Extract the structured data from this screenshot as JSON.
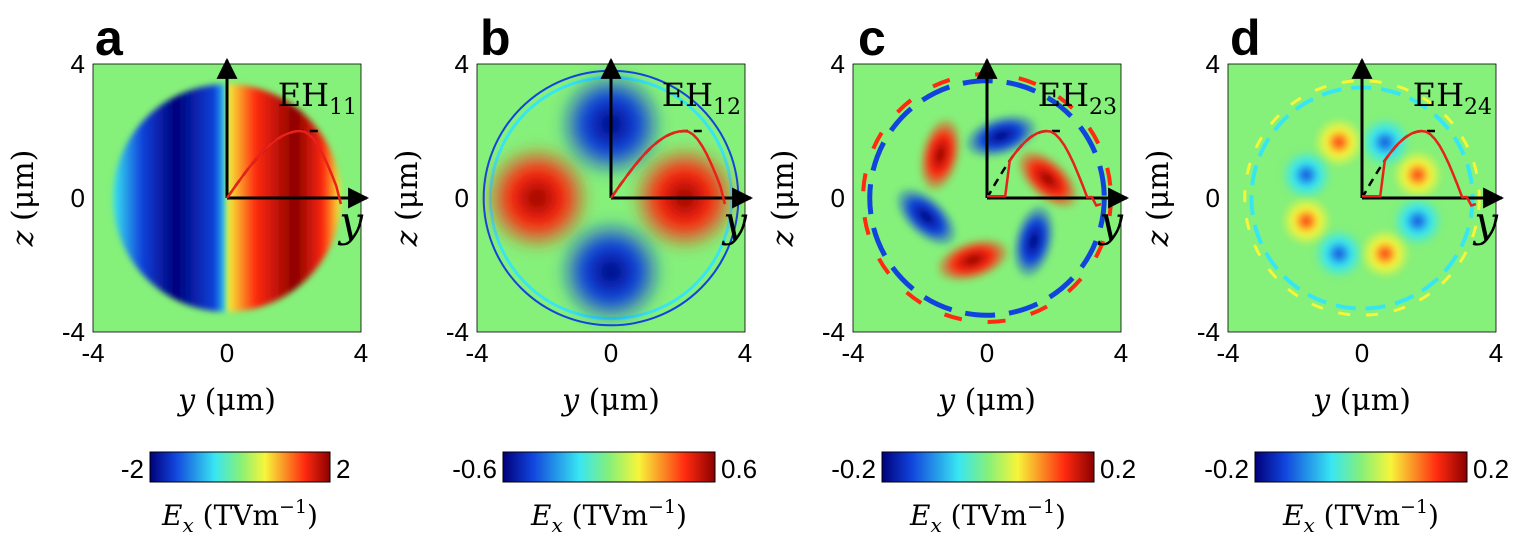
{
  "chart_data": [
    {
      "type": "heatmap",
      "panel": "a",
      "mode_label": "EH",
      "mode_sub": "11",
      "xlabel_var": "y",
      "ylabel_var": "z",
      "unit": "(μm)",
      "xlim": [
        -4,
        4
      ],
      "ylim": [
        -4,
        4
      ],
      "xticks": [
        "-4",
        "0",
        "4"
      ],
      "yticks": [
        "4",
        "0",
        "-4"
      ],
      "inset_axis_label": "y",
      "colorbar": {
        "min": "-2",
        "max": "2",
        "label_var": "E",
        "label_sub": "x",
        "label_unit": "(TVm",
        "label_exp": "−1",
        "label_close": ")"
      },
      "profile_peak_y": 2.2
    },
    {
      "type": "heatmap",
      "panel": "b",
      "mode_label": "EH",
      "mode_sub": "12",
      "xlabel_var": "y",
      "ylabel_var": "z",
      "unit": "(μm)",
      "xlim": [
        -4,
        4
      ],
      "ylim": [
        -4,
        4
      ],
      "xticks": [
        "-4",
        "0",
        "4"
      ],
      "yticks": [
        "4",
        "0",
        "-4"
      ],
      "inset_axis_label": "y",
      "colorbar": {
        "min": "-0.6",
        "max": "0.6",
        "label_var": "E",
        "label_sub": "x",
        "label_unit": "(TVm",
        "label_exp": "−1",
        "label_close": ")"
      },
      "profile_peak_y": 2.2
    },
    {
      "type": "heatmap",
      "panel": "c",
      "mode_label": "EH",
      "mode_sub": "23",
      "xlabel_var": "y",
      "ylabel_var": "z",
      "unit": "(μm)",
      "xlim": [
        -4,
        4
      ],
      "ylim": [
        -4,
        4
      ],
      "xticks": [
        "-4",
        "0",
        "4"
      ],
      "yticks": [
        "4",
        "0",
        "-4"
      ],
      "inset_axis_label": "y",
      "colorbar": {
        "min": "-0.2",
        "max": "0.2",
        "label_var": "E",
        "label_sub": "x",
        "label_unit": "(TVm",
        "label_exp": "−1",
        "label_close": ")"
      },
      "profile_peak_y": 1.8
    },
    {
      "type": "heatmap",
      "panel": "d",
      "mode_label": "EH",
      "mode_sub": "24",
      "xlabel_var": "y",
      "ylabel_var": "z",
      "unit": "(μm)",
      "xlim": [
        -4,
        4
      ],
      "ylim": [
        -4,
        4
      ],
      "xticks": [
        "-4",
        "0",
        "4"
      ],
      "yticks": [
        "4",
        "0",
        "-4"
      ],
      "inset_axis_label": "y",
      "colorbar": {
        "min": "-0.2",
        "max": "0.2",
        "label_var": "E",
        "label_sub": "x",
        "label_unit": "(TVm",
        "label_exp": "−1",
        "label_close": ")"
      },
      "profile_peak_y": 1.8
    }
  ],
  "colors": {
    "background": "#85f07a",
    "dark_red": "#8b0000",
    "red": "#ff2a10",
    "yellow": "#f7f53a",
    "cyan": "#38e6f2",
    "blue": "#1144dd",
    "dark_blue": "#00007a",
    "profile_line": "#e8221a",
    "fit_line": "#000000"
  }
}
